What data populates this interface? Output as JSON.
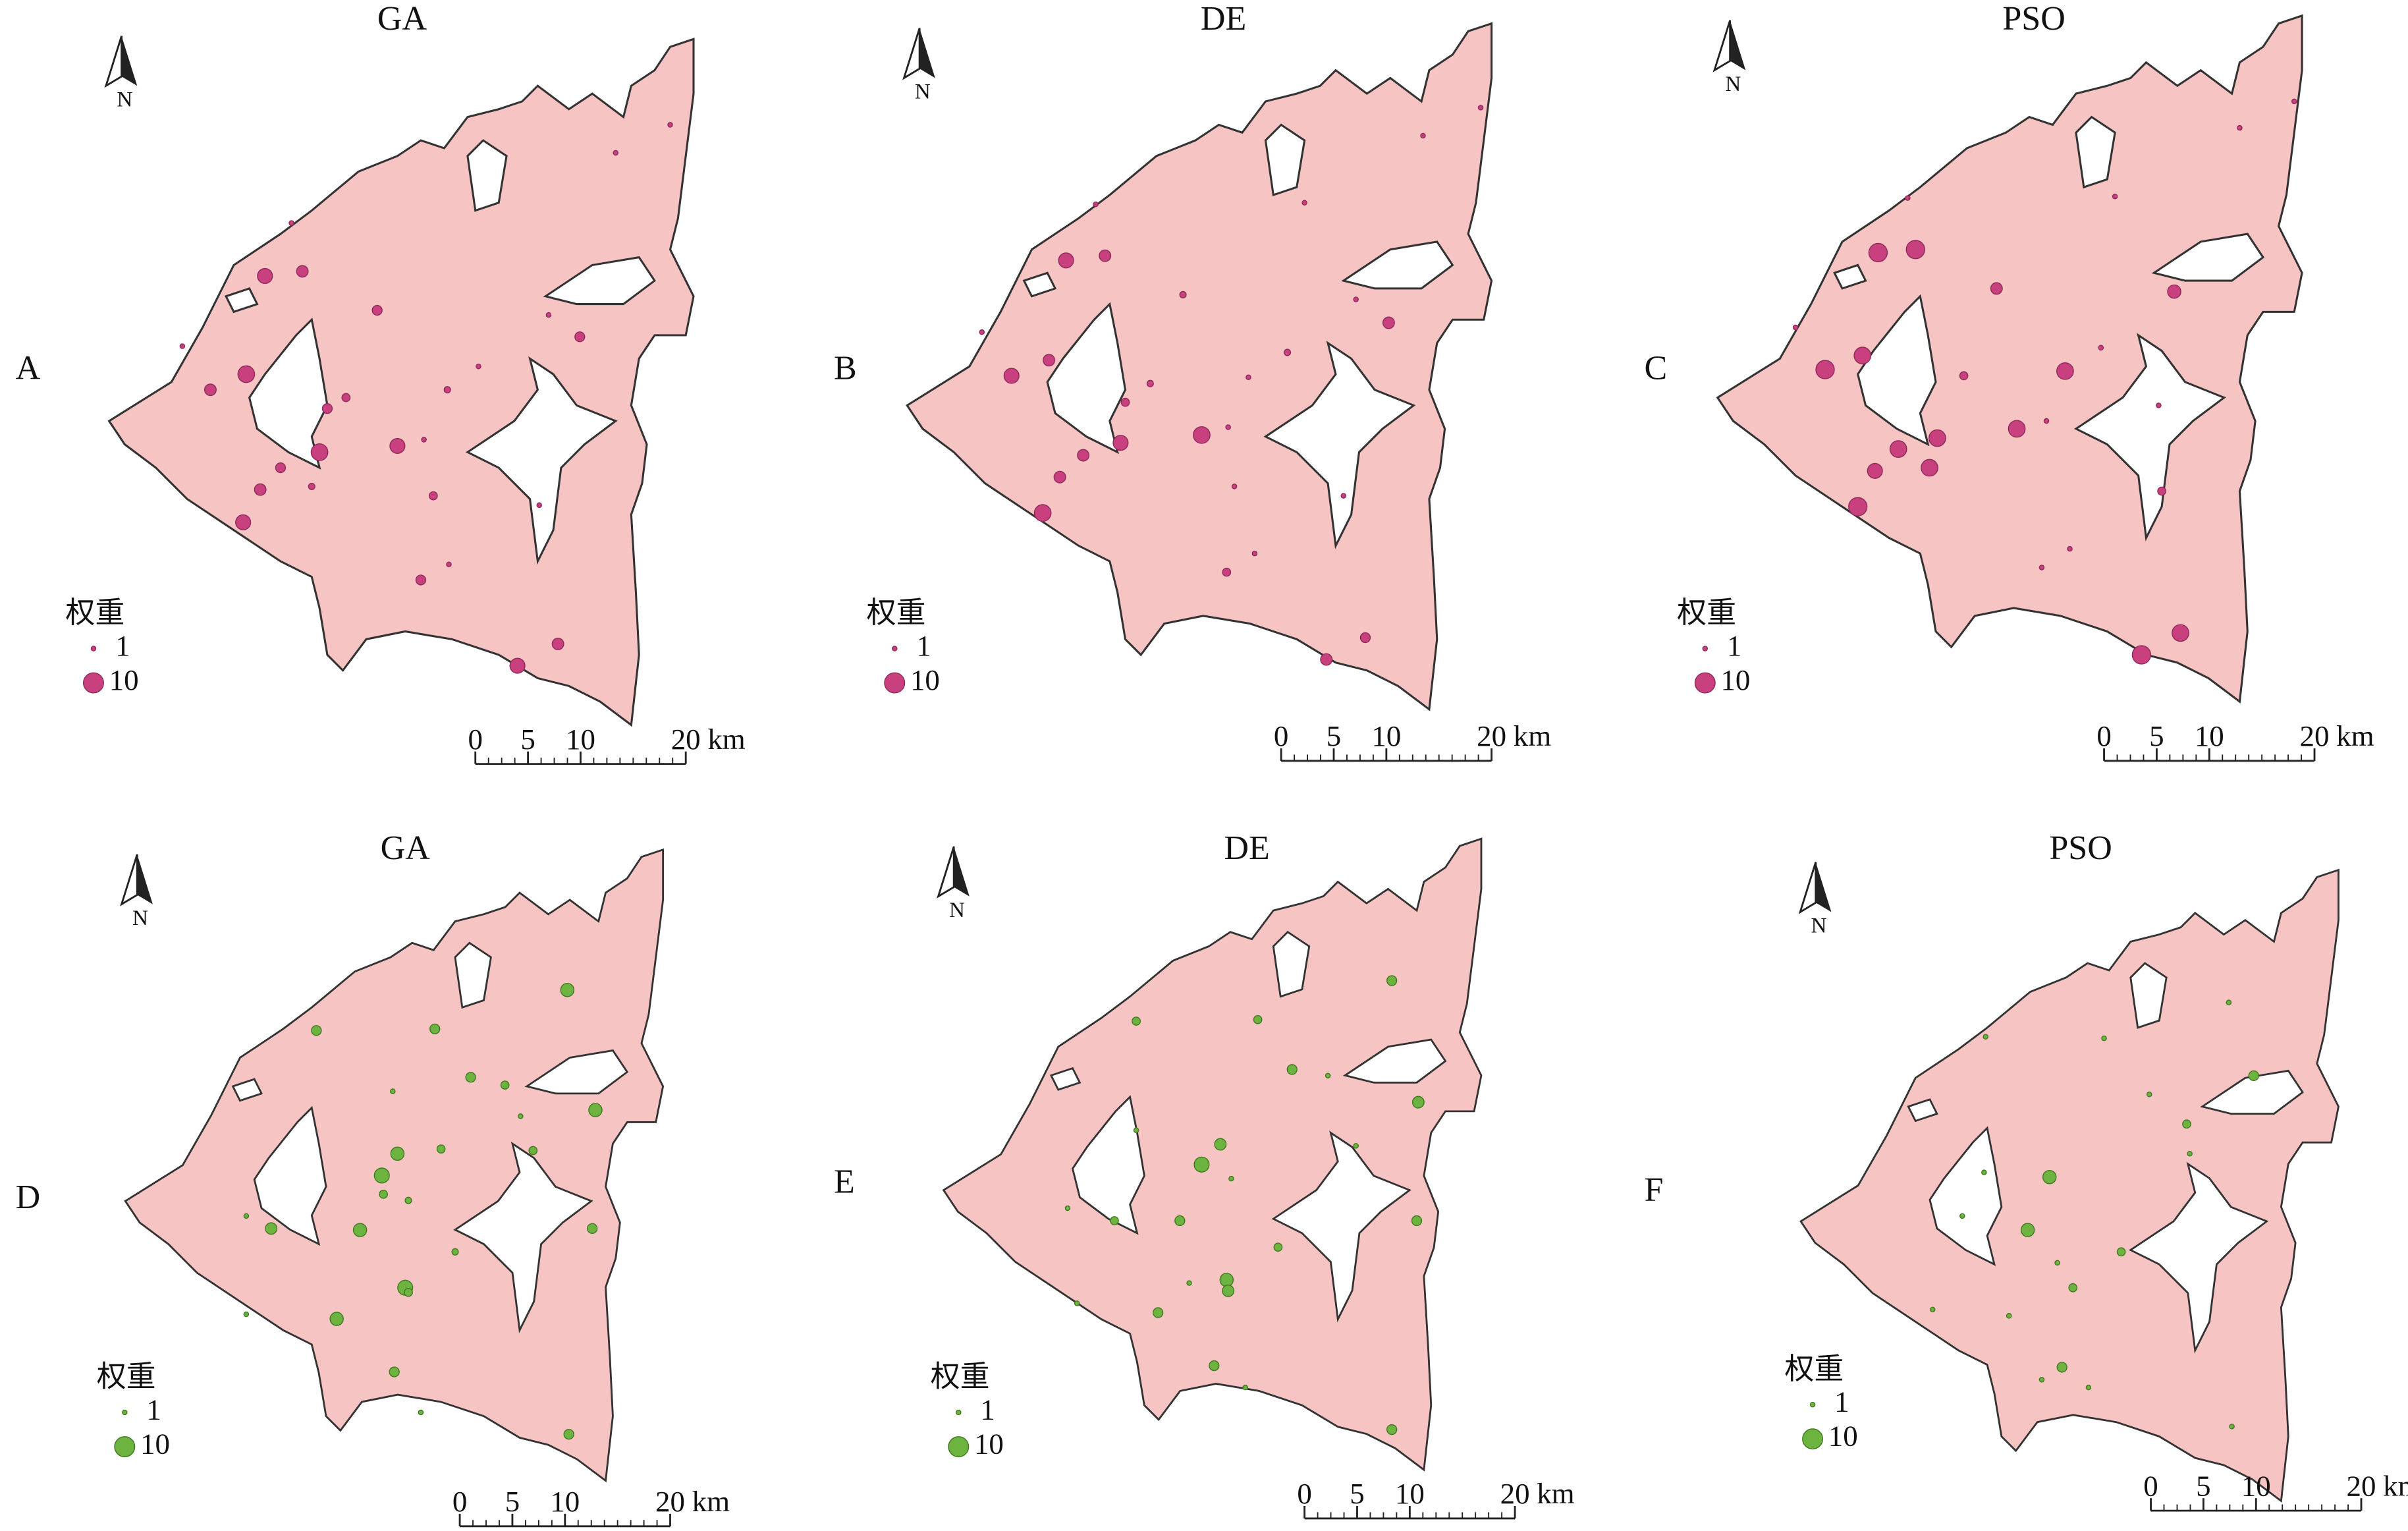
{
  "panels": [
    {
      "label": "A",
      "title": "GA",
      "north": "N",
      "legend": {
        "title": "权重",
        "items": [
          1,
          10
        ]
      },
      "scale_bar": {
        "ticks": [
          0,
          5,
          10,
          20
        ],
        "unit": "km"
      },
      "weights": [
        7,
        5,
        4,
        8,
        5,
        4,
        3,
        8,
        4,
        5,
        7,
        7,
        1,
        2,
        1,
        4,
        1,
        3,
        4,
        1,
        5,
        7,
        1,
        1,
        1,
        1,
        2,
        1
      ]
    },
    {
      "label": "B",
      "title": "DE",
      "north": "N",
      "legend": {
        "title": "权重",
        "items": [
          1,
          10
        ]
      },
      "scale_bar": {
        "ticks": [
          0,
          5,
          10,
          20
        ],
        "unit": "km"
      },
      "weights": [
        7,
        5,
        2,
        7,
        5,
        2,
        3,
        7,
        5,
        5,
        8,
        8,
        1,
        2,
        1,
        5,
        1,
        1,
        3,
        1,
        4,
        5,
        1,
        1,
        1,
        1,
        1,
        1
      ]
    },
    {
      "label": "C",
      "title": "PSO",
      "north": "N",
      "legend": {
        "title": "权重",
        "items": [
          1,
          10
        ]
      },
      "scale_bar": {
        "ticks": [
          0,
          5,
          10,
          20
        ],
        "unit": "km"
      },
      "weights": [
        9,
        9,
        5,
        9,
        8,
        3,
        8,
        8,
        7,
        8,
        9,
        8,
        8,
        1,
        1,
        6,
        1,
        3,
        1,
        1,
        8,
        9,
        1,
        1,
        1,
        1,
        1
      ]
    },
    {
      "label": "D",
      "title": "GA",
      "north": "N",
      "legend": {
        "title": "权重",
        "items": [
          1,
          10
        ]
      },
      "scale_bar": {
        "ticks": [
          0,
          5,
          10,
          20
        ],
        "unit": "km"
      },
      "weights": [
        4,
        4,
        6,
        4,
        3,
        6,
        6,
        3,
        7,
        3,
        2,
        3,
        5,
        6,
        7,
        3,
        6,
        2,
        4,
        4,
        4,
        1,
        1,
        1,
        1,
        1
      ]
    },
    {
      "label": "E",
      "title": "DE",
      "north": "N",
      "legend": {
        "title": "权重",
        "items": [
          1,
          10
        ]
      },
      "scale_bar": {
        "ticks": [
          0,
          5,
          10,
          20
        ],
        "unit": "km"
      },
      "weights": [
        3,
        3,
        4,
        4,
        1,
        5,
        5,
        7,
        1,
        4,
        3,
        4,
        6,
        5,
        3,
        4,
        4,
        4,
        1,
        1,
        1,
        1,
        1,
        1
      ]
    },
    {
      "label": "F",
      "title": "PSO",
      "north": "N",
      "legend": {
        "title": "权重",
        "items": [
          1,
          10
        ]
      },
      "scale_bar": {
        "ticks": [
          0,
          5,
          10,
          20
        ],
        "unit": "km"
      },
      "weights": [
        6,
        6,
        3,
        3,
        4,
        4,
        1,
        1,
        1,
        1,
        1,
        1,
        1,
        3,
        1,
        1,
        1,
        1,
        1,
        1
      ]
    }
  ]
}
